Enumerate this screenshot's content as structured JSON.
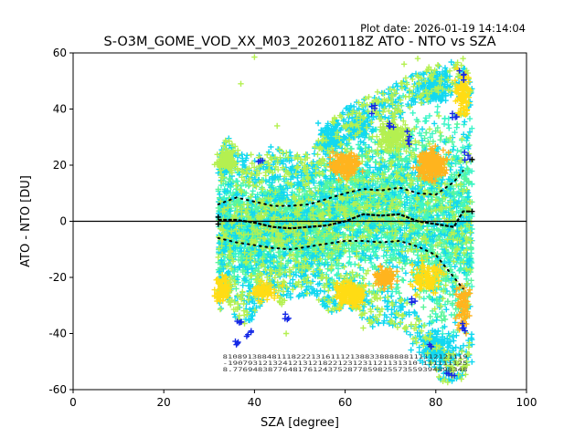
{
  "plot_date": "Plot date: 2026-01-19 14:14:04",
  "chart_data": {
    "type": "scatter",
    "title": "S-O3M_GOME_VOD_XX_M03_20260118Z ATO - NTO vs SZA",
    "xlabel": "SZA [degree]",
    "ylabel": "ATO - NTO [DU]",
    "xlim": [
      0,
      100
    ],
    "ylim": [
      -60,
      60
    ],
    "xticks": [
      0,
      20,
      40,
      60,
      80,
      100
    ],
    "yticks": [
      -60,
      -40,
      -20,
      0,
      20,
      40,
      60
    ],
    "zero_line": 0,
    "marker": "+",
    "sza_range": [
      32,
      88
    ],
    "colors": {
      "bulk": "#3cf5c8",
      "spring": "#5af59a",
      "cyan": "#12d8f0",
      "lime": "#b4f050",
      "yellow": "#ffdc14",
      "orange": "#ffb41e",
      "blue": "#1428e6",
      "black": "#000000",
      "axis": "#000000"
    },
    "mean_curve": [
      {
        "x": 32,
        "y": 0.5
      },
      {
        "x": 36,
        "y": 0.5
      },
      {
        "x": 40,
        "y": -0.5
      },
      {
        "x": 44,
        "y": -2
      },
      {
        "x": 48,
        "y": -2.5
      },
      {
        "x": 52,
        "y": -2
      },
      {
        "x": 56,
        "y": -1.5
      },
      {
        "x": 60,
        "y": 0
      },
      {
        "x": 64,
        "y": 2.5
      },
      {
        "x": 68,
        "y": 2
      },
      {
        "x": 72,
        "y": 2.5
      },
      {
        "x": 76,
        "y": 0
      },
      {
        "x": 80,
        "y": -1
      },
      {
        "x": 84,
        "y": -2
      },
      {
        "x": 86,
        "y": 3.5
      },
      {
        "x": 88,
        "y": 3.5
      }
    ],
    "upper_sigma": [
      {
        "x": 32,
        "y": 6
      },
      {
        "x": 36,
        "y": 8.5
      },
      {
        "x": 40,
        "y": 7
      },
      {
        "x": 44,
        "y": 5.5
      },
      {
        "x": 48,
        "y": 5.5
      },
      {
        "x": 52,
        "y": 6
      },
      {
        "x": 56,
        "y": 8
      },
      {
        "x": 60,
        "y": 10
      },
      {
        "x": 64,
        "y": 11.5
      },
      {
        "x": 68,
        "y": 11
      },
      {
        "x": 72,
        "y": 12
      },
      {
        "x": 76,
        "y": 10
      },
      {
        "x": 80,
        "y": 9.5
      },
      {
        "x": 84,
        "y": 14
      },
      {
        "x": 86,
        "y": 18
      }
    ],
    "lower_sigma": [
      {
        "x": 32,
        "y": -6
      },
      {
        "x": 36,
        "y": -7.5
      },
      {
        "x": 40,
        "y": -8.5
      },
      {
        "x": 44,
        "y": -9.5
      },
      {
        "x": 48,
        "y": -10
      },
      {
        "x": 52,
        "y": -9
      },
      {
        "x": 56,
        "y": -8
      },
      {
        "x": 60,
        "y": -7
      },
      {
        "x": 64,
        "y": -7
      },
      {
        "x": 68,
        "y": -7.5
      },
      {
        "x": 72,
        "y": -7
      },
      {
        "x": 76,
        "y": -9
      },
      {
        "x": 80,
        "y": -12
      },
      {
        "x": 84,
        "y": -20
      },
      {
        "x": 86,
        "y": -24
      }
    ],
    "envelope": [
      {
        "x": 32,
        "lo": -32,
        "hi": 24
      },
      {
        "x": 34,
        "lo": -30,
        "hi": 30
      },
      {
        "x": 36,
        "lo": -35,
        "hi": 28
      },
      {
        "x": 38,
        "lo": -38,
        "hi": 25
      },
      {
        "x": 40,
        "lo": -34,
        "hi": 24
      },
      {
        "x": 42,
        "lo": -28,
        "hi": 25
      },
      {
        "x": 44,
        "lo": -25,
        "hi": 27
      },
      {
        "x": 46,
        "lo": -30,
        "hi": 26
      },
      {
        "x": 48,
        "lo": -28,
        "hi": 25
      },
      {
        "x": 50,
        "lo": -27,
        "hi": 24
      },
      {
        "x": 52,
        "lo": -26,
        "hi": 24
      },
      {
        "x": 54,
        "lo": -28,
        "hi": 30
      },
      {
        "x": 56,
        "lo": -32,
        "hi": 35
      },
      {
        "x": 58,
        "lo": -33,
        "hi": 38
      },
      {
        "x": 60,
        "lo": -30,
        "hi": 40
      },
      {
        "x": 62,
        "lo": -32,
        "hi": 42
      },
      {
        "x": 64,
        "lo": -35,
        "hi": 44
      },
      {
        "x": 66,
        "lo": -38,
        "hi": 45
      },
      {
        "x": 68,
        "lo": -36,
        "hi": 47
      },
      {
        "x": 70,
        "lo": -38,
        "hi": 48
      },
      {
        "x": 72,
        "lo": -38,
        "hi": 50
      },
      {
        "x": 74,
        "lo": -40,
        "hi": 52
      },
      {
        "x": 76,
        "lo": -44,
        "hi": 53
      },
      {
        "x": 78,
        "lo": -50,
        "hi": 55
      },
      {
        "x": 80,
        "lo": -55,
        "hi": 56
      },
      {
        "x": 82,
        "lo": -58,
        "hi": 57
      },
      {
        "x": 84,
        "lo": -58,
        "hi": 57
      },
      {
        "x": 86,
        "lo": -56,
        "hi": 56
      },
      {
        "x": 88,
        "lo": -52,
        "hi": 50
      }
    ],
    "stat_rows": [
      "81089138848111822213161112138833888888111112121119",
      "-19079312132412131218221231231121131310-111111125",
      "8.77694838776481761243752877859825573559394898348"
    ]
  }
}
